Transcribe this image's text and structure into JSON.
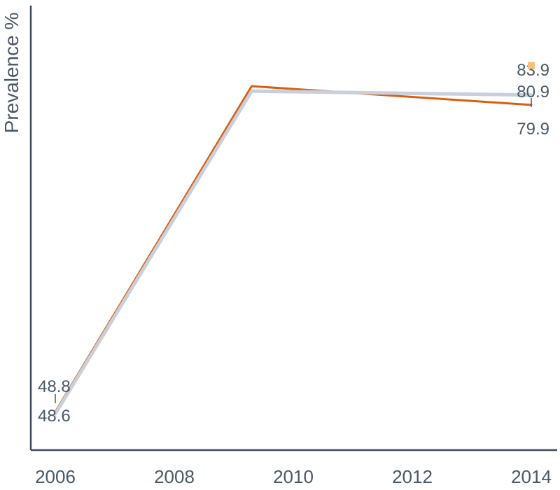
{
  "chart_data": {
    "type": "line",
    "title": "",
    "xlabel": "",
    "ylabel": "Prevalence %",
    "x_ticks": [
      "2006",
      "2008",
      "2010",
      "2012",
      "2014"
    ],
    "xlim": [
      2006,
      2014
    ],
    "ylim": [
      45,
      90
    ],
    "grid": false,
    "series": [
      {
        "color": "#d95f0e",
        "points": [
          {
            "x": 2006,
            "y": 48.8
          },
          {
            "x": 2009.3,
            "y": 81.8
          },
          {
            "x": 2014,
            "y": 79.9
          }
        ],
        "end_labels": {
          "start": "48.8",
          "end": "79.9"
        }
      },
      {
        "color": "#c8cfdd",
        "points": [
          {
            "x": 2006,
            "y": 48.6
          },
          {
            "x": 2009.3,
            "y": 81.3
          },
          {
            "x": 2014,
            "y": 80.9
          }
        ],
        "end_labels": {
          "start": "48.6",
          "end": "80.9"
        }
      }
    ],
    "extra_points": [
      {
        "x": 2014,
        "y": 83.9,
        "label": "83.9",
        "color": "#f5c27a"
      }
    ]
  }
}
